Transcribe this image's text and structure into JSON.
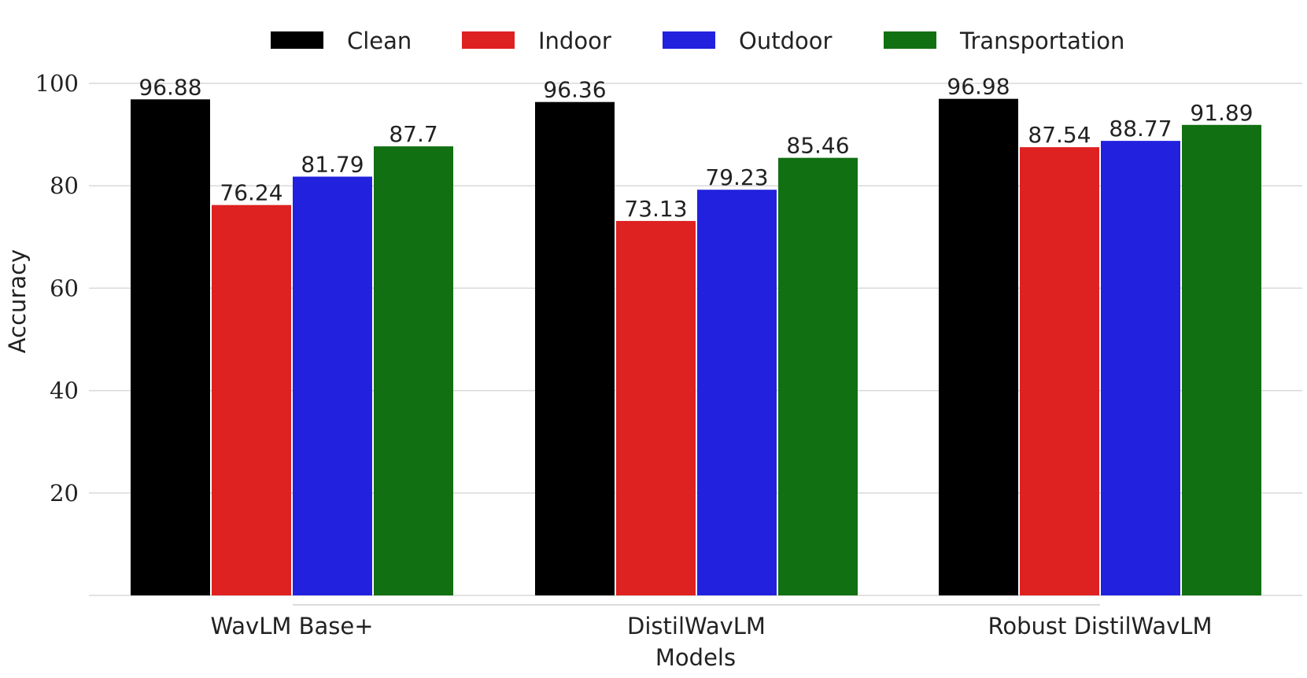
{
  "chart_data": {
    "type": "bar",
    "categories": [
      "WavLM Base+",
      "DistilWavLM",
      "Robust DistilWavLM"
    ],
    "series": [
      {
        "name": "Clean",
        "color": "#000000",
        "values": [
          96.88,
          96.36,
          96.98
        ]
      },
      {
        "name": "Indoor",
        "color": "#de2121",
        "values": [
          76.24,
          73.13,
          87.54
        ]
      },
      {
        "name": "Outdoor",
        "color": "#2121de",
        "values": [
          81.79,
          79.23,
          88.77
        ]
      },
      {
        "name": "Transportation",
        "color": "#117011",
        "values": [
          87.7,
          85.46,
          91.89
        ]
      }
    ],
    "data_labels": [
      [
        "96.88",
        "96.36",
        "96.98"
      ],
      [
        "76.24",
        "73.13",
        "87.54"
      ],
      [
        "81.79",
        "79.23",
        "88.77"
      ],
      [
        "87.7",
        "85.46",
        "91.89"
      ]
    ],
    "xlabel": "Models",
    "ylabel": "Accuracy",
    "ylim": [
      0,
      100
    ],
    "yticks": [
      20,
      40,
      60,
      80,
      100
    ],
    "grid": true,
    "legend_position": "top"
  }
}
